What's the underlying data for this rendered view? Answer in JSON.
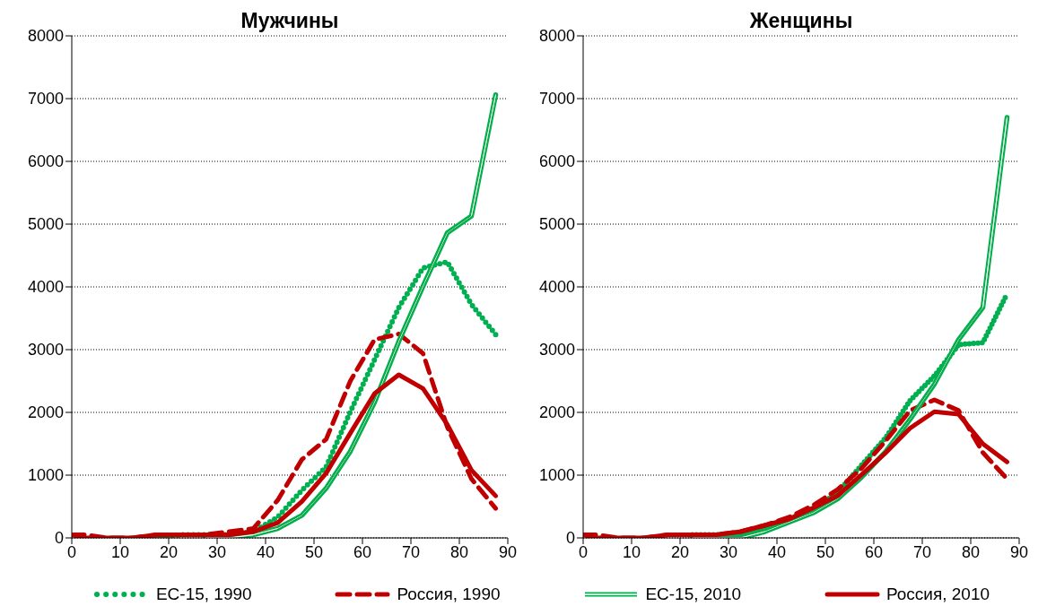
{
  "chart_data": [
    {
      "type": "line",
      "title": "Мужчины",
      "x": [
        0,
        2.5,
        7.5,
        12.5,
        17.5,
        22.5,
        27.5,
        32.5,
        37.5,
        42.5,
        47.5,
        52.5,
        57.5,
        62.5,
        67.5,
        72.5,
        77.5,
        82.5,
        87.5
      ],
      "xlim": [
        0,
        90
      ],
      "xticks": [
        0,
        10,
        20,
        30,
        40,
        50,
        60,
        70,
        80,
        90
      ],
      "ylim": [
        0,
        8000
      ],
      "yticks": [
        0,
        1000,
        2000,
        3000,
        4000,
        5000,
        6000,
        7000,
        8000
      ],
      "grid": "y",
      "legend": "bottom",
      "marker": "none",
      "series": [
        {
          "name": "ЕС-15, 1990",
          "color": "#00b050",
          "line_style": "dotted",
          "values": [
            null,
            null,
            null,
            null,
            0,
            50,
            50,
            50,
            100,
            330,
            760,
            1130,
            2010,
            2840,
            3670,
            4300,
            4400,
            3720,
            3240
          ]
        },
        {
          "name": "Россия, 1990",
          "color": "#c00000",
          "line_style": "dashed",
          "values": [
            50,
            50,
            0,
            0,
            50,
            50,
            50,
            100,
            150,
            600,
            1250,
            1570,
            2500,
            3160,
            3250,
            2940,
            1770,
            940,
            470
          ]
        },
        {
          "name": "ЕС-15, 2010",
          "color": "#00b050",
          "line_style": "solid",
          "values": [
            null,
            null,
            null,
            null,
            null,
            null,
            0,
            0,
            50,
            150,
            360,
            790,
            1380,
            2160,
            3130,
            4010,
            4860,
            5130,
            7060
          ]
        },
        {
          "name": "Россия, 2010",
          "color": "#c00000",
          "line_style": "solid",
          "values": [
            50,
            0,
            0,
            0,
            50,
            50,
            50,
            50,
            100,
            240,
            580,
            1030,
            1670,
            2300,
            2600,
            2380,
            1810,
            1080,
            670
          ]
        }
      ]
    },
    {
      "type": "line",
      "title": "Женщины",
      "x": [
        0,
        2.5,
        7.5,
        12.5,
        17.5,
        22.5,
        27.5,
        32.5,
        37.5,
        42.5,
        47.5,
        52.5,
        57.5,
        62.5,
        67.5,
        72.5,
        77.5,
        82.5,
        87.5
      ],
      "xlim": [
        0,
        90
      ],
      "xticks": [
        0,
        10,
        20,
        30,
        40,
        50,
        60,
        70,
        80,
        90
      ],
      "ylim": [
        0,
        8000
      ],
      "yticks": [
        0,
        1000,
        2000,
        3000,
        4000,
        5000,
        6000,
        7000,
        8000
      ],
      "grid": "y",
      "marker": "none",
      "series": [
        {
          "color": "#00b050",
          "line_style": "dotted",
          "values": [
            null,
            null,
            null,
            null,
            null,
            50,
            50,
            50,
            150,
            300,
            460,
            720,
            1160,
            1600,
            2190,
            2580,
            3080,
            3110,
            3890
          ]
        },
        {
          "color": "#c00000",
          "line_style": "dashed",
          "values": [
            50,
            50,
            0,
            0,
            50,
            50,
            50,
            100,
            200,
            330,
            520,
            770,
            1110,
            1550,
            2030,
            2200,
            2030,
            1360,
            940
          ]
        },
        {
          "color": "#00b050",
          "line_style": "solid",
          "values": [
            null,
            null,
            null,
            null,
            null,
            0,
            0,
            0,
            100,
            250,
            400,
            620,
            970,
            1380,
            1890,
            2450,
            3160,
            3670,
            6700
          ]
        },
        {
          "color": "#c00000",
          "line_style": "solid",
          "values": [
            50,
            0,
            0,
            0,
            50,
            50,
            50,
            100,
            200,
            300,
            480,
            670,
            1010,
            1360,
            1750,
            2010,
            1970,
            1500,
            1210
          ]
        }
      ]
    }
  ]
}
